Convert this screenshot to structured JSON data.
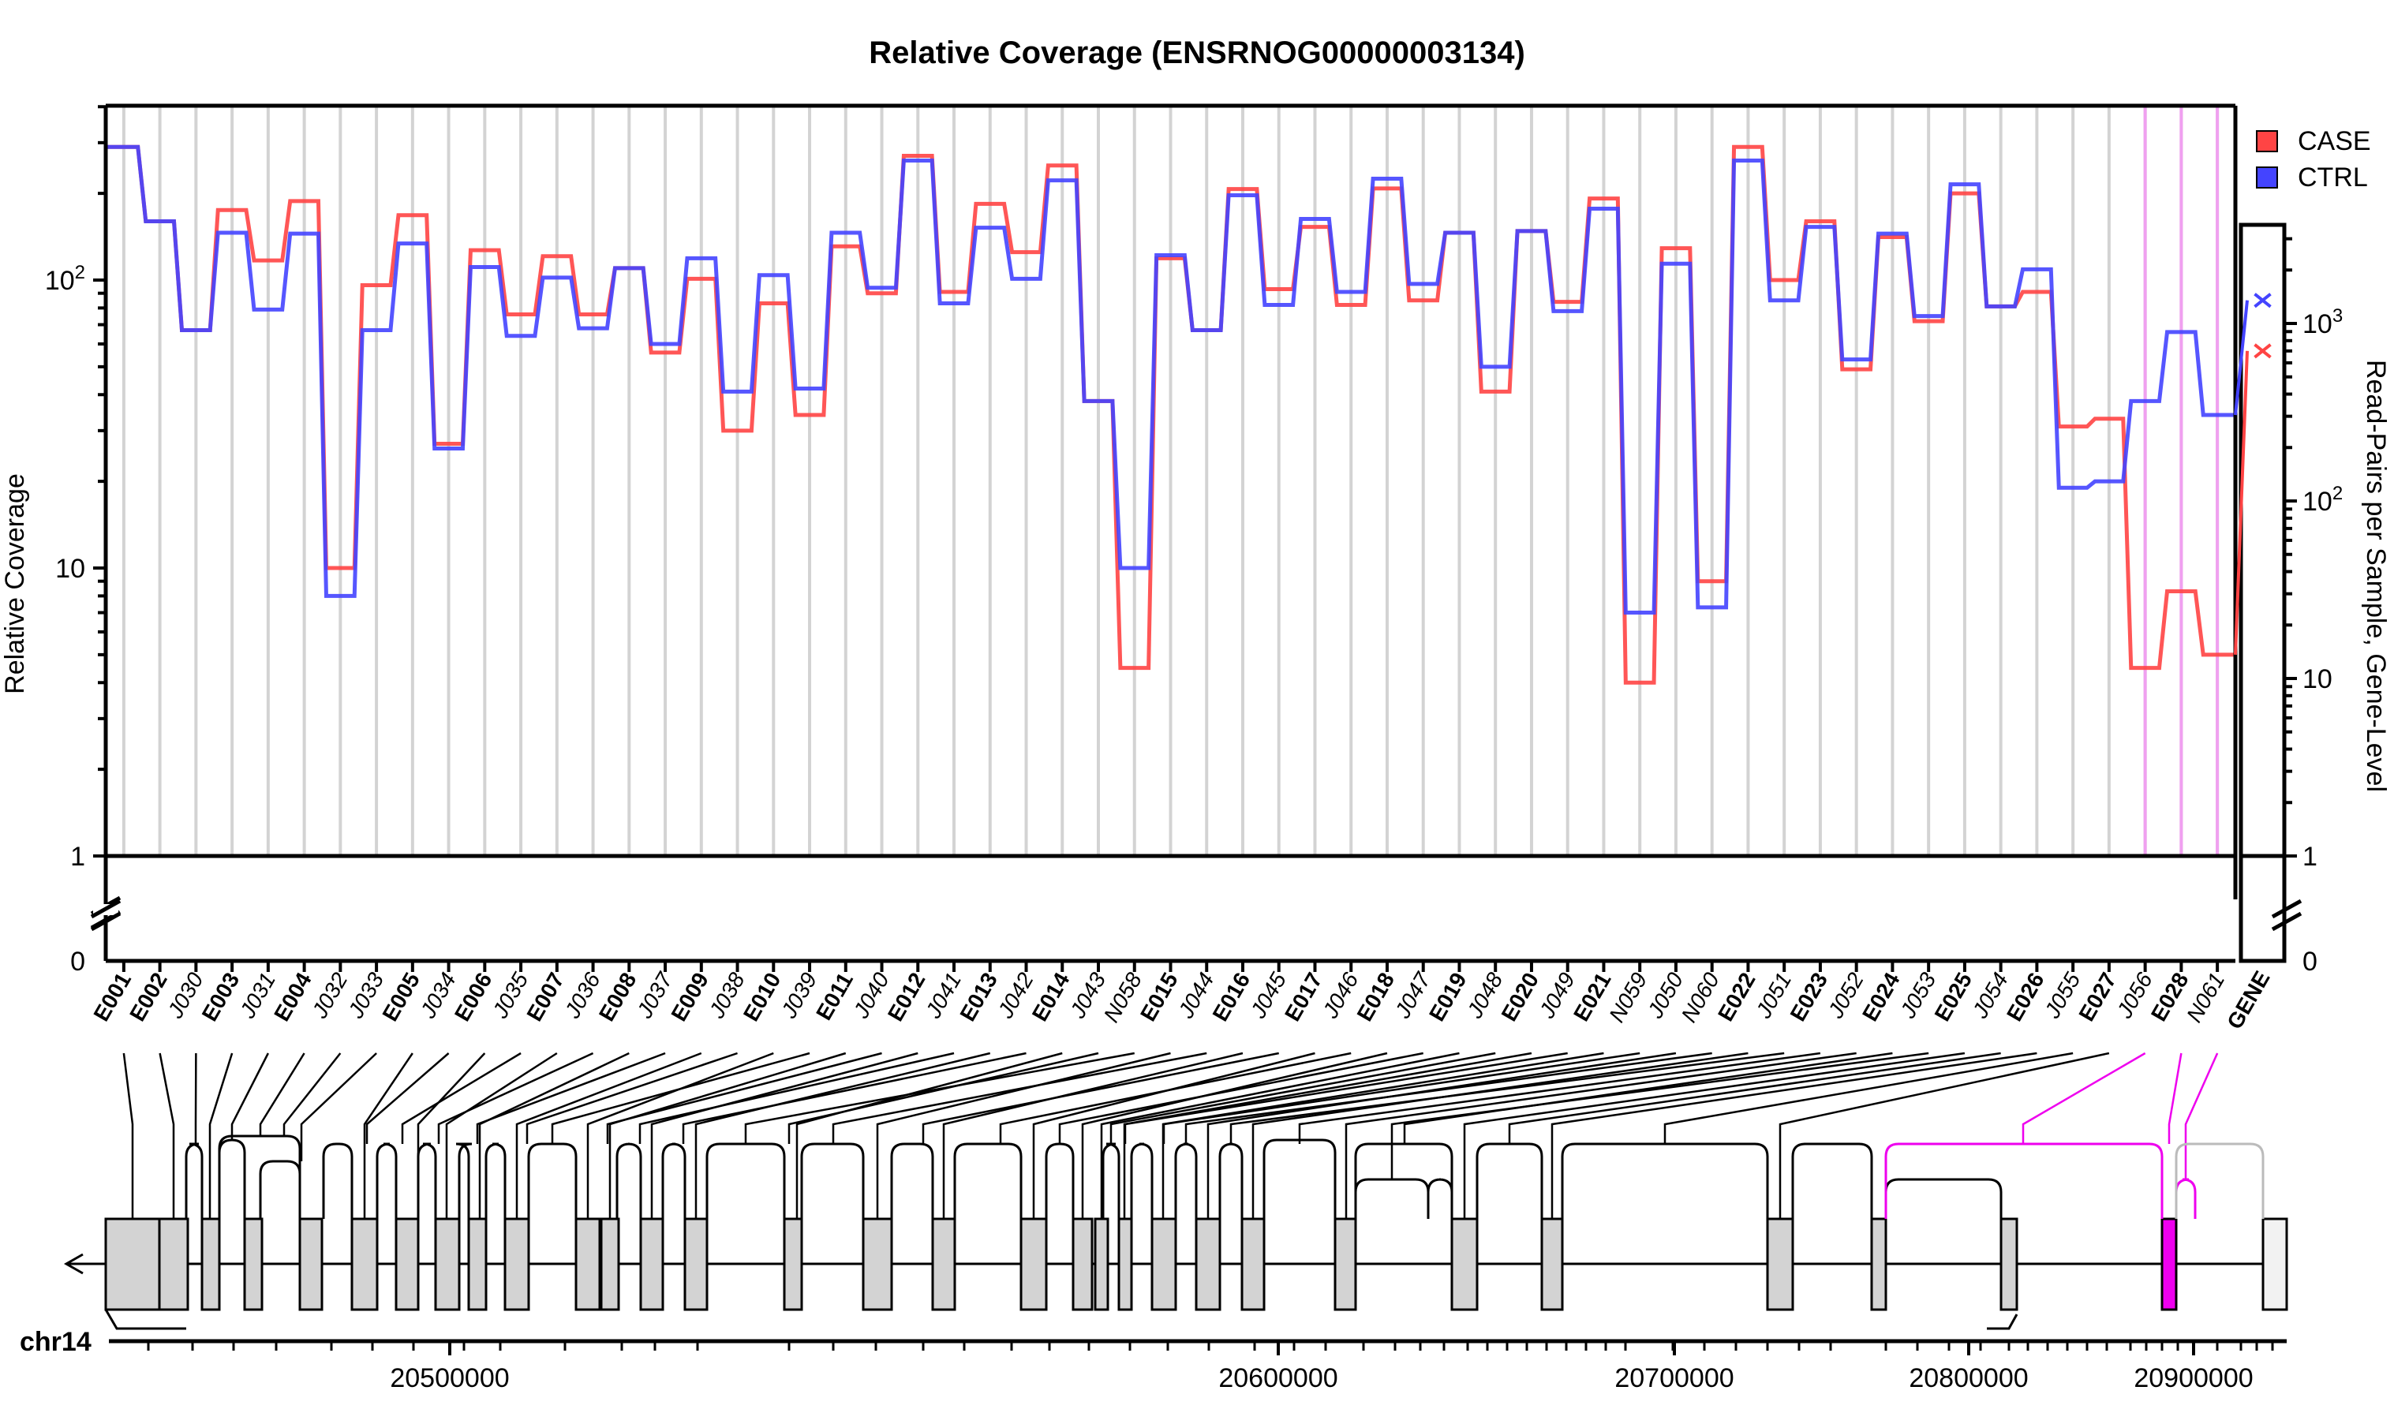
{
  "chart_data": {
    "type": "line",
    "title": "Relative Coverage (ENSRNOG00000003134)",
    "ylabel": "Relative Coverage",
    "y2label": "Read-Pairs per Sample, Gene-Level",
    "yscale": "log",
    "ylim": [
      1,
      440
    ],
    "yticks": [
      "0",
      "1",
      "10",
      "10^2"
    ],
    "y2ticks": [
      "0",
      "1",
      "10",
      "10^2",
      "10^3"
    ],
    "legend_position": "top-right",
    "categories": [
      "E001",
      "E002",
      "J030",
      "E003",
      "J031",
      "E004",
      "J032",
      "J033",
      "E005",
      "J034",
      "E006",
      "J035",
      "E007",
      "J036",
      "E008",
      "J037",
      "E009",
      "J038",
      "E010",
      "J039",
      "E011",
      "J040",
      "E012",
      "J041",
      "E013",
      "J042",
      "E014",
      "J043",
      "N058",
      "E015",
      "J044",
      "E016",
      "J045",
      "E017",
      "J046",
      "E018",
      "J047",
      "E019",
      "J048",
      "E020",
      "J049",
      "E021",
      "N059",
      "J050",
      "N060",
      "E022",
      "J051",
      "E023",
      "J052",
      "E024",
      "J053",
      "E025",
      "J054",
      "E026",
      "J055",
      "E027",
      "J056",
      "E028",
      "N061"
    ],
    "bold_categories": [
      "E001",
      "E002",
      "E003",
      "E004",
      "E005",
      "E006",
      "E007",
      "E008",
      "E009",
      "E010",
      "E011",
      "E012",
      "E013",
      "E014",
      "E015",
      "E016",
      "E017",
      "E018",
      "E019",
      "E020",
      "E021",
      "E022",
      "E023",
      "E024",
      "E025",
      "E026",
      "E027",
      "E028"
    ],
    "highlighted_categories": [
      "J056",
      "E028",
      "N061"
    ],
    "series": [
      {
        "name": "CASE",
        "color": "#ff4444",
        "values": [
          290,
          160,
          67,
          175,
          117,
          188,
          10,
          96,
          168,
          27,
          127,
          76,
          121,
          76,
          110,
          56,
          101,
          30,
          83,
          34,
          131,
          90,
          270,
          91,
          184,
          125,
          250,
          38,
          4.5,
          119,
          67,
          207,
          93,
          153,
          82,
          208,
          85,
          146,
          41,
          148,
          84,
          192,
          4,
          129,
          9,
          290,
          100,
          160,
          49,
          141,
          72,
          200,
          81,
          91,
          31,
          33,
          4.5,
          8.3,
          5
        ]
      },
      {
        "name": "CTRL",
        "color": "#4444ff",
        "values": [
          290,
          160,
          67,
          146,
          79,
          145,
          8,
          67,
          134,
          26,
          111,
          64,
          102,
          68,
          110,
          60,
          119,
          41,
          104,
          42,
          146,
          94,
          260,
          83,
          152,
          101,
          222,
          38,
          10,
          122,
          67,
          197,
          82,
          163,
          91,
          225,
          97,
          146,
          50,
          148,
          78,
          177,
          7,
          114,
          7.3,
          260,
          85,
          153,
          53,
          145,
          75,
          215,
          81,
          109,
          19,
          20,
          38,
          66,
          34
        ]
      }
    ],
    "gene_level": {
      "label": "GENE",
      "CASE": 700,
      "CTRL": 1350
    },
    "genome_axis": {
      "chromosome": "chr14",
      "tick_labels": [
        "20500000",
        "20600000",
        "20700000",
        "20800000",
        "20900000"
      ]
    },
    "colors": {
      "case": "#ff4444",
      "ctrl": "#4444ff",
      "highlight": "#ee00ee",
      "highlight_light": "#f0a0f0",
      "exon_fill": "#d3d3d3",
      "gridline": "#d3d3d3",
      "axis": "#000000"
    }
  }
}
